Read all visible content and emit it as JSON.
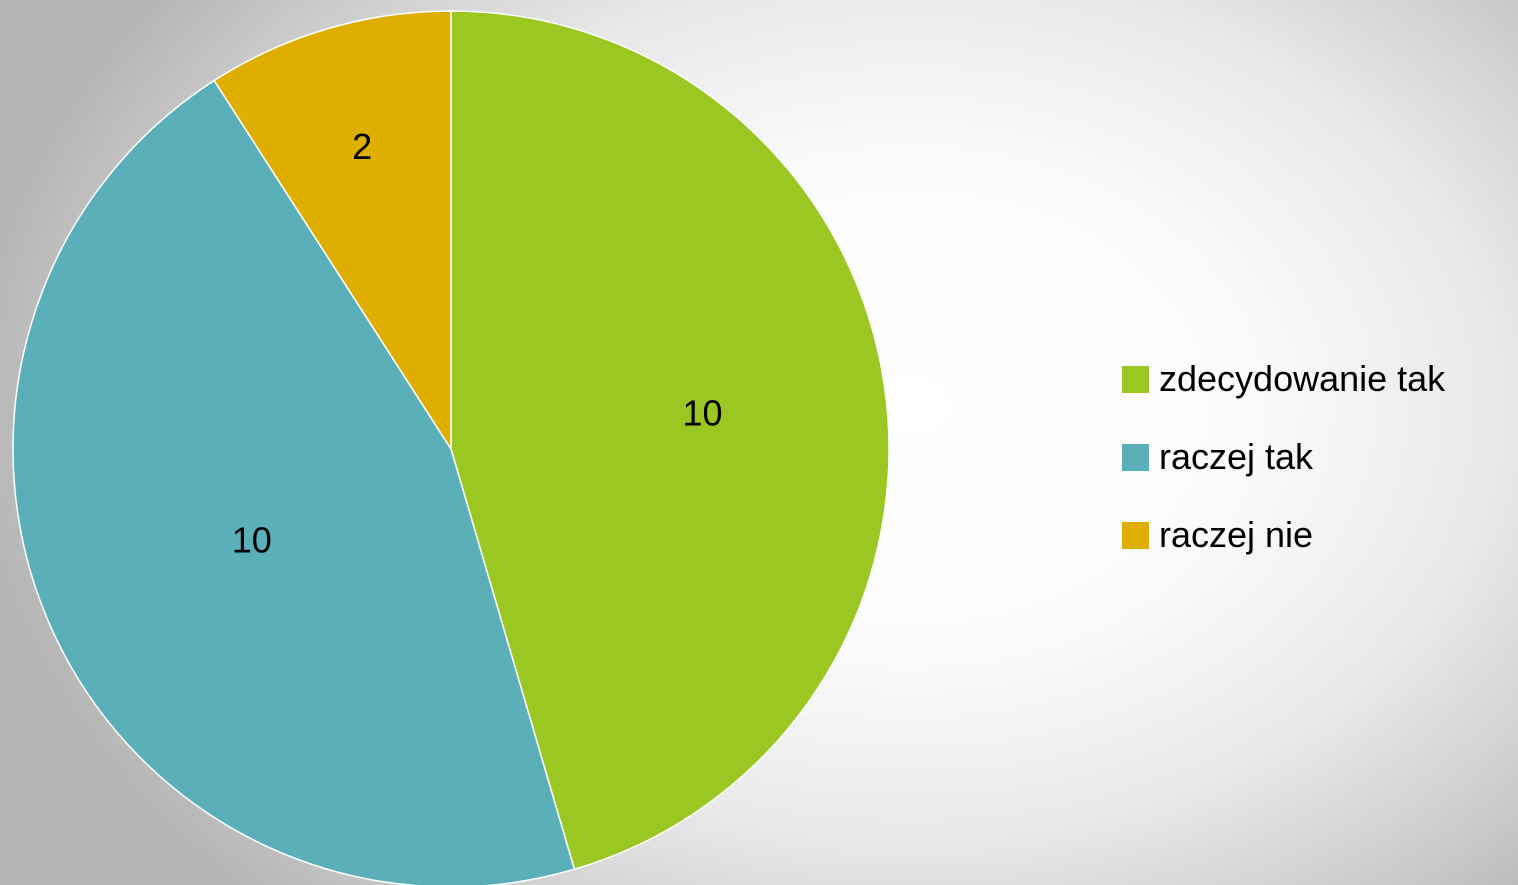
{
  "chart_data": {
    "type": "pie",
    "categories": [
      "zdecydowanie tak",
      "raczej tak",
      "raczej nie"
    ],
    "values": [
      10,
      10,
      2
    ],
    "data_labels": [
      "10",
      "10",
      "2"
    ],
    "colors": [
      "#9BC723",
      "#5BAFB9",
      "#DEAF00"
    ],
    "legend_placement": "right",
    "start_angle": "top",
    "direction": "clockwise"
  }
}
